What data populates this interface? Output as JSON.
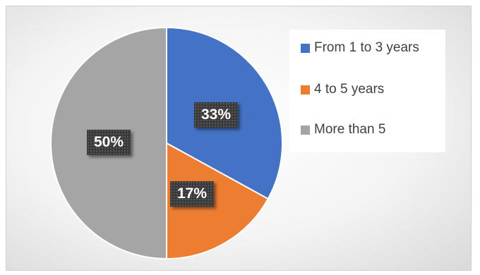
{
  "chart_data": {
    "type": "pie",
    "categories": [
      "From 1 to 3 years",
      "4 to 5 years",
      "More than 5"
    ],
    "values": [
      33,
      17,
      50
    ],
    "data_labels": [
      "33%",
      "17%",
      "50%"
    ],
    "colors": [
      "#4472c4",
      "#ed7d31",
      "#a5a5a5"
    ],
    "legend_position": "right",
    "title": ""
  }
}
